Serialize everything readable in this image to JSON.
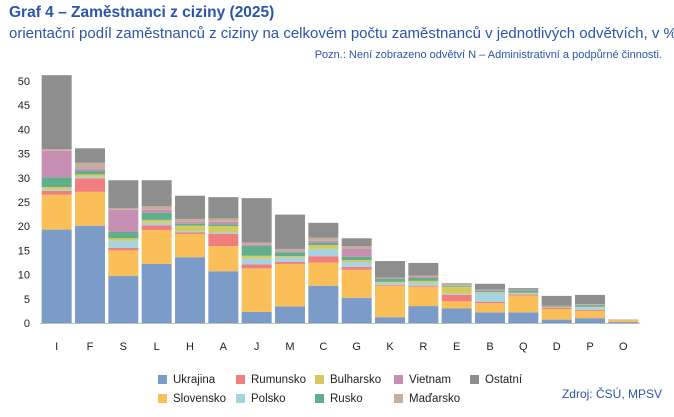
{
  "header": {
    "title": "Graf 4 – Zaměstnanci z ciziny (2025)",
    "subtitle": "orientační podíl zaměstnanců z ciziny na celkovém počtu zaměstnanců v jednotlivých odvětvích, v %",
    "note": "Pozn.: Není zobrazeno odvětví N – Administrativní a podpůrné činnosti.",
    "source": "Zdroj: ČSÚ, MPSV"
  },
  "chart_data": {
    "type": "bar",
    "stacked": true,
    "title": "",
    "xlabel": "",
    "ylabel": "",
    "ylim": [
      0,
      50
    ],
    "yticks": [
      0,
      5,
      10,
      15,
      20,
      25,
      30,
      35,
      40,
      45,
      50
    ],
    "grid": false,
    "legend_position": "bottom",
    "categories": [
      "I",
      "F",
      "S",
      "L",
      "H",
      "A",
      "J",
      "M",
      "C",
      "G",
      "K",
      "R",
      "E",
      "B",
      "Q",
      "D",
      "P",
      "O"
    ],
    "series": [
      {
        "name": "Ukrajina",
        "color": "#7b9cc9",
        "values": [
          19.3,
          20.1,
          9.7,
          12.2,
          13.6,
          10.7,
          2.3,
          3.4,
          7.7,
          5.2,
          1.2,
          3.5,
          3.0,
          2.2,
          2.2,
          0.7,
          1.0,
          0.2
        ]
      },
      {
        "name": "Slovensko",
        "color": "#fbbf5a",
        "values": [
          7.2,
          7.0,
          5.3,
          7.0,
          4.8,
          5.2,
          9.0,
          8.8,
          4.8,
          5.8,
          6.5,
          4.0,
          1.5,
          1.9,
          3.5,
          2.2,
          1.5,
          0.4
        ]
      },
      {
        "name": "Rumunsko",
        "color": "#f07e7e",
        "values": [
          0.8,
          2.8,
          0.5,
          1.0,
          0.3,
          2.5,
          0.8,
          0.4,
          1.3,
          0.6,
          0.2,
          0.2,
          1.3,
          0.3,
          0.2,
          0.2,
          0.2,
          0.0
        ]
      },
      {
        "name": "Polsko",
        "color": "#a6d3e0",
        "values": [
          0.3,
          0.3,
          1.5,
          0.5,
          0.3,
          0.3,
          1.2,
          0.9,
          1.5,
          1.0,
          0.4,
          0.6,
          0.2,
          1.9,
          0.3,
          0.1,
          0.6,
          0.0
        ]
      },
      {
        "name": "Bulharsko",
        "color": "#d6ca5e",
        "values": [
          0.5,
          0.5,
          0.5,
          0.6,
          1.1,
          1.3,
          0.6,
          0.3,
          0.8,
          0.4,
          0.2,
          0.4,
          1.5,
          0.1,
          0.1,
          0.1,
          0.1,
          0.0
        ]
      },
      {
        "name": "Rusko",
        "color": "#5fae8c",
        "values": [
          2.0,
          0.7,
          1.3,
          1.5,
          0.4,
          0.4,
          2.0,
          0.8,
          0.5,
          0.7,
          0.6,
          0.6,
          0.2,
          0.2,
          0.4,
          0.1,
          0.3,
          0.0
        ]
      },
      {
        "name": "Vietnam",
        "color": "#c88fb4",
        "values": [
          5.5,
          0.5,
          4.6,
          0.6,
          0.4,
          0.5,
          0.3,
          0.2,
          0.4,
          1.6,
          0.1,
          0.2,
          0.1,
          0.1,
          0.1,
          0.1,
          0.1,
          0.0
        ]
      },
      {
        "name": "Maďarsko",
        "color": "#c6ad9c",
        "values": [
          0.3,
          1.2,
          0.3,
          0.7,
          0.6,
          0.7,
          0.4,
          0.5,
          0.6,
          0.6,
          0.2,
          0.3,
          0.2,
          0.2,
          0.1,
          0.1,
          0.1,
          0.0
        ]
      },
      {
        "name": "Ostatní",
        "color": "#8e8e8e",
        "values": [
          15.3,
          3.0,
          5.8,
          5.4,
          4.8,
          4.4,
          9.2,
          7.1,
          3.1,
          1.6,
          3.4,
          2.6,
          0.2,
          1.2,
          0.3,
          2.0,
          1.9,
          0.1
        ]
      }
    ],
    "legend_order": [
      "Ukrajina",
      "Rumunsko",
      "Bulharsko",
      "Vietnam",
      "Ostatní",
      "Slovensko",
      "Polsko",
      "Rusko",
      "Maďarsko"
    ]
  }
}
